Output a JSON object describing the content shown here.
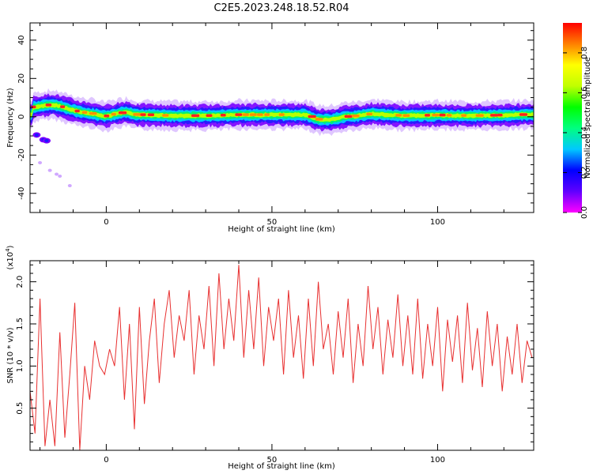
{
  "title": "C2E5.2023.248.18.52.R04",
  "chart_data": [
    {
      "type": "heatmap",
      "xlabel": "Height of straight line (km)",
      "ylabel": "Frequency (Hz)",
      "xlim": [
        -23,
        129
      ],
      "ylim": [
        -50,
        49
      ],
      "xticks": [
        0,
        50,
        100
      ],
      "yticks": [
        -40,
        -20,
        0,
        20,
        40
      ],
      "colorbar": {
        "label": "Normalized spectral amplitude",
        "range": [
          0,
          0.95
        ],
        "ticks": [
          "0.0",
          "0.2",
          "0.4",
          "0.6",
          "0.8"
        ],
        "colors": [
          "#ff00ff",
          "#6000ff",
          "#0000ff",
          "#00c8ff",
          "#00ff80",
          "#00ff00",
          "#c0ff00",
          "#ffff00",
          "#ff8000",
          "#ff0000"
        ]
      },
      "ridge": {
        "x": [
          -22,
          -20,
          -18,
          -16,
          -14,
          -12,
          -10,
          -8,
          -5,
          -2,
          0,
          3,
          6,
          9,
          12,
          20,
          30,
          40,
          50,
          60,
          64,
          68,
          72,
          76,
          80,
          90,
          100,
          110,
          120,
          129
        ],
        "freq": [
          5,
          5.5,
          6,
          6.2,
          5.5,
          4.5,
          3.5,
          2.5,
          1.8,
          0.8,
          0.3,
          1.5,
          2.5,
          1.0,
          1.0,
          0.5,
          0.5,
          1.0,
          1.0,
          1.0,
          -1.5,
          -1.5,
          0,
          0.5,
          1.5,
          0.5,
          0.8,
          0.5,
          0.8,
          1.2
        ]
      },
      "secondary_blob": {
        "x": [
          -21,
          -19,
          -18
        ],
        "freq": [
          -9.5,
          -12,
          -12.5
        ]
      },
      "scatter_points": {
        "x": [
          -20,
          -17,
          -15,
          -14,
          -11
        ],
        "freq": [
          -24,
          -28,
          -30,
          -31,
          -36
        ]
      }
    },
    {
      "type": "line",
      "xlabel": "Height of straight line (km)",
      "ylabel": "SNR (10 * v/v)",
      "scale_label": "(x10",
      "scale_exp": "4",
      "scale_close": ")",
      "xlim": [
        -23,
        129
      ],
      "ylim": [
        0,
        2.25
      ],
      "xticks": [
        0,
        50,
        100
      ],
      "yticks": [
        "0.5",
        "1.0",
        "1.5",
        "2.0"
      ],
      "color": "#e83030",
      "series": [
        {
          "x": [
            -23,
            -21.5,
            -20,
            -18.5,
            -17,
            -15.5,
            -14,
            -12.5,
            -11,
            -9.5,
            -8,
            -6.5,
            -5,
            -3.5,
            -2,
            -0.5,
            1,
            2.5,
            4,
            5.5,
            7,
            8.5,
            10,
            11.5,
            13,
            14.5,
            16,
            17.5,
            19,
            20.5,
            22,
            23.5,
            25,
            26.5,
            28,
            29.5,
            31,
            32.5,
            34,
            35.5,
            37,
            38.5,
            40,
            41.5,
            43,
            44.5,
            46,
            47.5,
            49,
            50.5,
            52,
            53.5,
            55,
            56.5,
            58,
            59.5,
            61,
            62.5,
            64,
            65.5,
            67,
            68.5,
            70,
            71.5,
            73,
            74.5,
            76,
            77.5,
            79,
            80.5,
            82,
            83.5,
            85,
            86.5,
            88,
            89.5,
            91,
            92.5,
            94,
            95.5,
            97,
            98.5,
            100,
            101.5,
            103,
            104.5,
            106,
            107.5,
            109,
            110.5,
            112,
            113.5,
            115,
            116.5,
            118,
            119.5,
            121,
            122.5,
            124,
            125.5,
            127,
            128.5
          ],
          "values": [
            0.7,
            0.2,
            1.8,
            0.05,
            0.6,
            0.05,
            1.4,
            0.15,
            0.9,
            1.75,
            0.0,
            1.0,
            0.6,
            1.3,
            1.0,
            0.9,
            1.2,
            1.0,
            1.7,
            0.6,
            1.5,
            0.25,
            1.7,
            0.55,
            1.3,
            1.8,
            0.8,
            1.5,
            1.9,
            1.1,
            1.6,
            1.3,
            1.9,
            0.9,
            1.6,
            1.2,
            1.95,
            1.0,
            2.1,
            1.2,
            1.8,
            1.3,
            2.2,
            1.1,
            1.9,
            1.2,
            2.05,
            1.0,
            1.7,
            1.3,
            1.8,
            0.9,
            1.9,
            1.1,
            1.6,
            0.85,
            1.8,
            1.0,
            2.0,
            1.2,
            1.5,
            0.9,
            1.65,
            1.1,
            1.8,
            0.8,
            1.5,
            1.0,
            1.95,
            1.2,
            1.7,
            0.9,
            1.55,
            1.1,
            1.85,
            1.0,
            1.6,
            0.9,
            1.8,
            0.85,
            1.5,
            1.0,
            1.7,
            0.7,
            1.55,
            1.05,
            1.6,
            0.8,
            1.75,
            0.95,
            1.45,
            0.75,
            1.65,
            1.0,
            1.5,
            0.7,
            1.35,
            0.9,
            1.5,
            0.8,
            1.3,
            1.1
          ]
        }
      ]
    }
  ]
}
